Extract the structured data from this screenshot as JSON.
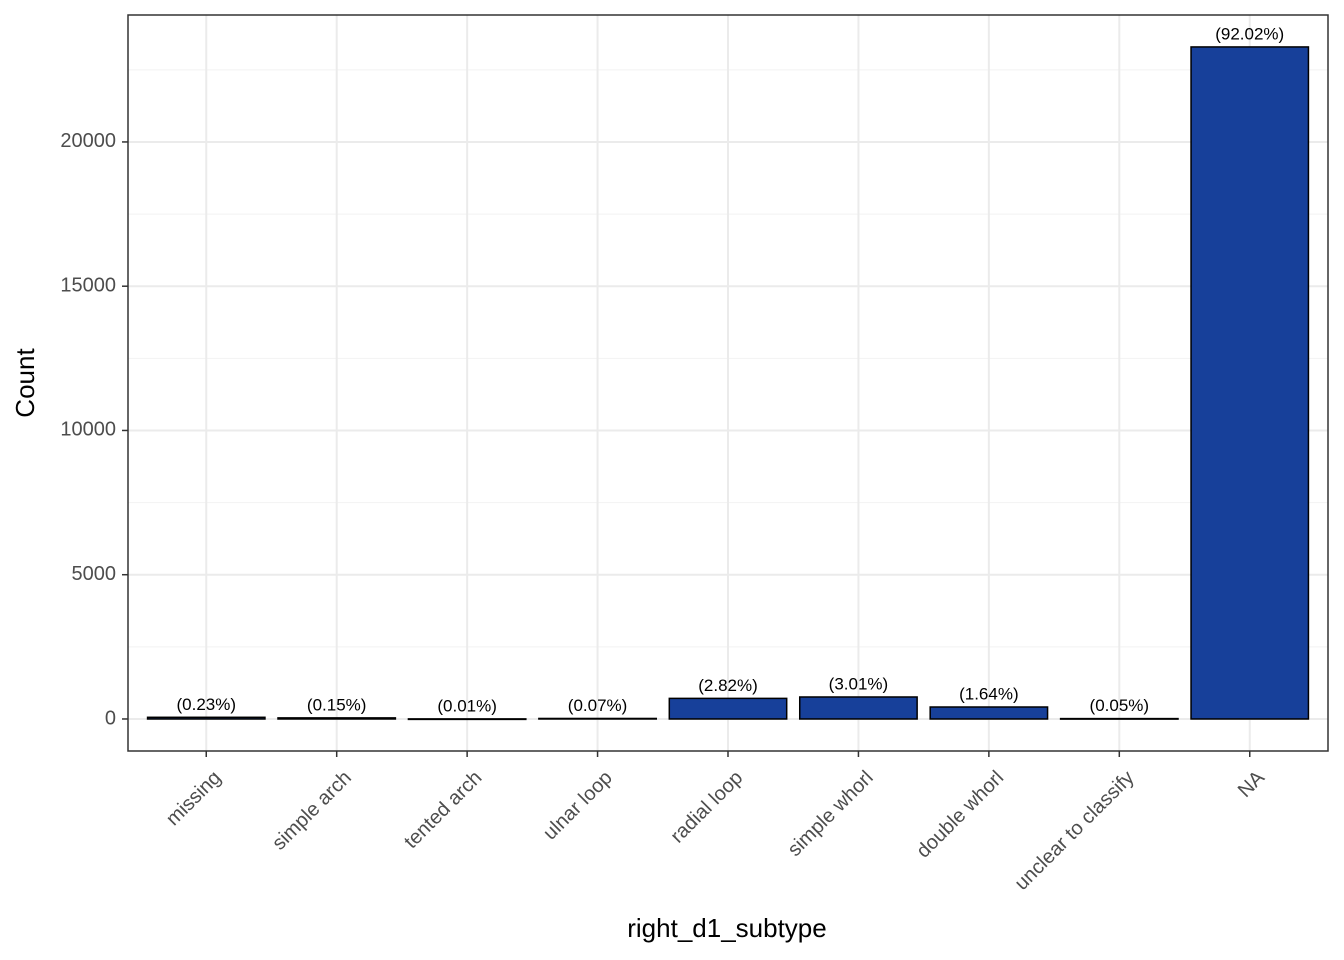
{
  "chart_data": {
    "type": "bar",
    "x_label": "right_d1_subtype",
    "y_label": "Count",
    "categories": [
      "missing",
      "simple arch",
      "tented arch",
      "ulnar loop",
      "radial loop",
      "simple whorl",
      "double whorl",
      "unclear to classify",
      "NA"
    ],
    "values": [
      58,
      38,
      3,
      18,
      714,
      762,
      415,
      13,
      23293
    ],
    "annotations": [
      "(0.23%)",
      "(0.15%)",
      "(0.01%)",
      "(0.07%)",
      "(2.82%)",
      "(3.01%)",
      "(1.64%)",
      "(0.05%)",
      "(92.02%)"
    ],
    "color": "#17409a",
    "ylim": [
      -1110,
      24400
    ],
    "yticks": [
      0,
      5000,
      10000,
      15000,
      20000
    ],
    "grid": true
  }
}
